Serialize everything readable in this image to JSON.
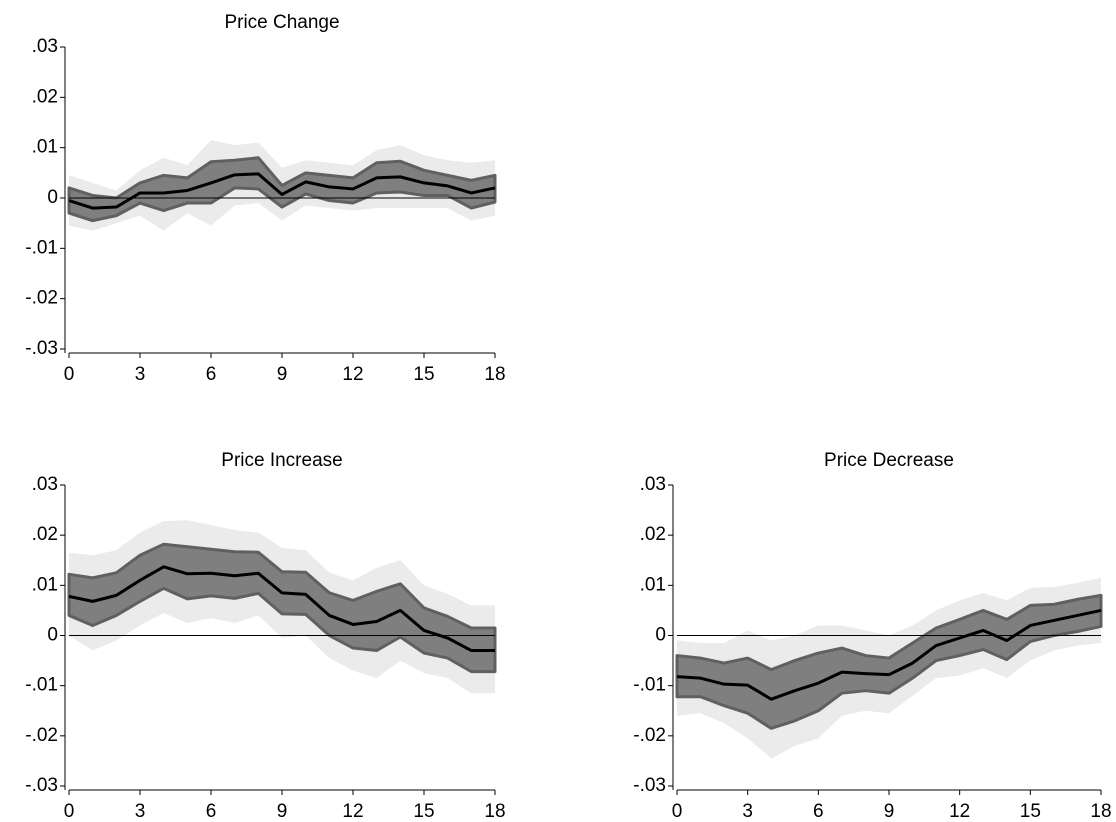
{
  "chart_data": [
    {
      "type": "band-line",
      "title": "Price Change",
      "x": [
        0,
        1,
        2,
        3,
        4,
        5,
        6,
        7,
        8,
        9,
        10,
        11,
        12,
        13,
        14,
        15,
        16,
        17,
        18
      ],
      "xlim": [
        0,
        18
      ],
      "xticks": [
        0,
        3,
        6,
        9,
        12,
        15,
        18
      ],
      "ylim": [
        -0.03,
        0.03
      ],
      "yticks": [
        {
          "value": -0.03,
          "label": "-.03"
        },
        {
          "value": -0.02,
          "label": "-.02"
        },
        {
          "value": -0.01,
          "label": "-.01"
        },
        0,
        {
          "value": 0.01,
          "label": ".01"
        },
        {
          "value": 0.02,
          "label": ".02"
        },
        {
          "value": 0.03,
          "label": ".03"
        }
      ],
      "refline": 0,
      "bands": [
        {
          "color": "#ebebeb",
          "upper": [
            0.0045,
            0.003,
            0.0015,
            0.0055,
            0.008,
            0.0065,
            0.0115,
            0.0105,
            0.011,
            0.006,
            0.0075,
            0.007,
            0.0065,
            0.0095,
            0.0105,
            0.0085,
            0.0075,
            0.007,
            0.0075
          ],
          "lower": [
            -0.0055,
            -0.0065,
            -0.005,
            -0.0035,
            -0.0065,
            -0.003,
            -0.0055,
            -0.0015,
            -0.001,
            -0.0045,
            -0.0015,
            -0.002,
            -0.0025,
            -0.002,
            -0.002,
            -0.002,
            -0.002,
            -0.0045,
            -0.0035
          ]
        },
        {
          "color": "#7f7f7f",
          "upper": [
            0.002,
            0.0005,
            0,
            0.003,
            0.0045,
            0.004,
            0.0072,
            0.0075,
            0.008,
            0.0025,
            0.005,
            0.0045,
            0.004,
            0.007,
            0.0073,
            0.0055,
            0.0045,
            0.0035,
            0.0045
          ],
          "lower": [
            -0.003,
            -0.0045,
            -0.0035,
            -0.001,
            -0.0025,
            -0.001,
            -0.001,
            0.002,
            0.0018,
            -0.0018,
            0.0008,
            -0.0005,
            -0.001,
            0.001,
            0.0012,
            0.0005,
            0.0005,
            -0.002,
            -0.0008
          ]
        }
      ],
      "series": [
        {
          "color": "#000000",
          "values": [
            -0.0005,
            -0.002,
            -0.0018,
            0.001,
            0.001,
            0.0015,
            0.003,
            0.0046,
            0.0048,
            0.0007,
            0.0032,
            0.0022,
            0.0018,
            0.004,
            0.0042,
            0.003,
            0.0024,
            0.001,
            0.002
          ]
        }
      ]
    },
    {
      "type": "band-line",
      "title": "Price Increase",
      "x": [
        0,
        1,
        2,
        3,
        4,
        5,
        6,
        7,
        8,
        9,
        10,
        11,
        12,
        13,
        14,
        15,
        16,
        17,
        18
      ],
      "xlim": [
        0,
        18
      ],
      "xticks": [
        0,
        3,
        6,
        9,
        12,
        15,
        18
      ],
      "ylim": [
        -0.03,
        0.03
      ],
      "yticks": [
        {
          "value": -0.03,
          "label": "-.03"
        },
        {
          "value": -0.02,
          "label": "-.02"
        },
        {
          "value": -0.01,
          "label": "-.01"
        },
        0,
        {
          "value": 0.01,
          "label": ".01"
        },
        {
          "value": 0.02,
          "label": ".02"
        },
        {
          "value": 0.03,
          "label": ".03"
        }
      ],
      "refline": 0,
      "bands": [
        {
          "color": "#ebebeb",
          "upper": [
            0.0165,
            0.016,
            0.017,
            0.0205,
            0.0228,
            0.023,
            0.022,
            0.021,
            0.0205,
            0.0175,
            0.017,
            0.0125,
            0.011,
            0.0135,
            0.015,
            0.01,
            0.0083,
            0.006,
            0.006
          ],
          "lower": [
            0.0,
            -0.003,
            -0.001,
            0.002,
            0.0045,
            0.0025,
            0.0035,
            0.0025,
            0.004,
            -0.0005,
            0.0,
            -0.0045,
            -0.007,
            -0.0085,
            -0.005,
            -0.0075,
            -0.0085,
            -0.0115,
            -0.0115
          ]
        },
        {
          "color": "#7f7f7f",
          "upper": [
            0.0122,
            0.0115,
            0.0125,
            0.016,
            0.0182,
            0.0177,
            0.0172,
            0.0167,
            0.0166,
            0.0127,
            0.0126,
            0.0085,
            0.007,
            0.0088,
            0.0103,
            0.0055,
            0.0038,
            0.0015,
            0.0015
          ],
          "lower": [
            0.004,
            0.002,
            0.004,
            0.0068,
            0.0094,
            0.0073,
            0.0079,
            0.0074,
            0.0084,
            0.0043,
            0.0042,
            0.0,
            -0.0025,
            -0.003,
            -0.0003,
            -0.0035,
            -0.0045,
            -0.0072,
            -0.0072
          ]
        }
      ],
      "series": [
        {
          "color": "#000000",
          "values": [
            0.0078,
            0.0068,
            0.008,
            0.011,
            0.0137,
            0.0123,
            0.0124,
            0.0119,
            0.0124,
            0.0085,
            0.0082,
            0.004,
            0.0022,
            0.0028,
            0.005,
            0.001,
            -0.0005,
            -0.003,
            -0.003
          ]
        }
      ]
    },
    {
      "type": "band-line",
      "title": "Price Decrease",
      "x": [
        0,
        1,
        2,
        3,
        4,
        5,
        6,
        7,
        8,
        9,
        10,
        11,
        12,
        13,
        14,
        15,
        16,
        17,
        18
      ],
      "xlim": [
        0,
        18
      ],
      "xticks": [
        0,
        3,
        6,
        9,
        12,
        15,
        18
      ],
      "ylim": [
        -0.03,
        0.03
      ],
      "yticks": [
        {
          "value": -0.03,
          "label": "-.03"
        },
        {
          "value": -0.02,
          "label": "-.02"
        },
        {
          "value": -0.01,
          "label": "-.01"
        },
        0,
        {
          "value": 0.01,
          "label": ".01"
        },
        {
          "value": 0.02,
          "label": ".02"
        },
        {
          "value": 0.03,
          "label": ".03"
        }
      ],
      "refline": 0,
      "bands": [
        {
          "color": "#ebebeb",
          "upper": [
            -0.001,
            -0.0015,
            -0.0015,
            0.001,
            -0.001,
            0.0,
            0.002,
            0.002,
            0.001,
            0.0,
            0.002,
            0.005,
            0.007,
            0.0085,
            0.007,
            0.0095,
            0.0097,
            0.0105,
            0.0115
          ],
          "lower": [
            -0.016,
            -0.0155,
            -0.0175,
            -0.0205,
            -0.0245,
            -0.022,
            -0.0205,
            -0.016,
            -0.015,
            -0.0155,
            -0.012,
            -0.0085,
            -0.008,
            -0.0065,
            -0.0085,
            -0.005,
            -0.003,
            -0.002,
            -0.0015
          ]
        },
        {
          "color": "#7f7f7f",
          "upper": [
            -0.004,
            -0.0045,
            -0.0055,
            -0.0045,
            -0.0068,
            -0.005,
            -0.0035,
            -0.0025,
            -0.004,
            -0.0045,
            -0.0015,
            0.0015,
            0.0032,
            0.005,
            0.0032,
            0.006,
            0.0062,
            0.0072,
            0.008
          ],
          "lower": [
            -0.0122,
            -0.0122,
            -0.014,
            -0.0155,
            -0.0185,
            -0.017,
            -0.015,
            -0.0115,
            -0.011,
            -0.0115,
            -0.0085,
            -0.005,
            -0.004,
            -0.0028,
            -0.0048,
            -0.0012,
            0.0,
            0.0008,
            0.0018
          ]
        }
      ],
      "series": [
        {
          "color": "#000000",
          "values": [
            -0.0082,
            -0.0085,
            -0.0097,
            -0.0099,
            -0.0127,
            -0.011,
            -0.0095,
            -0.0073,
            -0.0076,
            -0.0078,
            -0.0055,
            -0.002,
            -0.0005,
            0.001,
            -0.001,
            0.002,
            0.003,
            0.004,
            0.005
          ]
        }
      ]
    }
  ]
}
